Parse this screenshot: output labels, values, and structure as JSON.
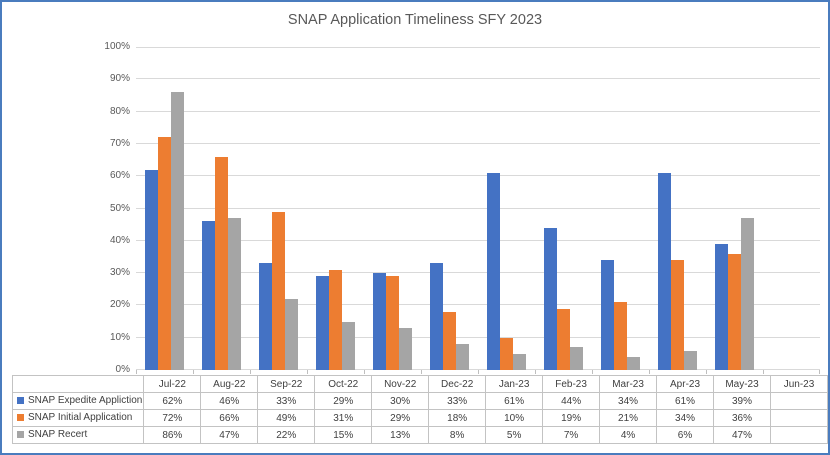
{
  "chart_data": {
    "type": "bar",
    "title": "SNAP Application Timeliness SFY 2023",
    "categories": [
      "Jul-22",
      "Aug-22",
      "Sep-22",
      "Oct-22",
      "Nov-22",
      "Dec-22",
      "Jan-23",
      "Feb-23",
      "Mar-23",
      "Apr-23",
      "May-23",
      "Jun-23"
    ],
    "series": [
      {
        "name": "SNAP Expedite Appliction",
        "color": "#4472C4",
        "values": [
          62,
          46,
          33,
          29,
          30,
          33,
          61,
          44,
          34,
          61,
          39,
          null
        ]
      },
      {
        "name": "SNAP Initial Application",
        "color": "#ED7D31",
        "values": [
          72,
          66,
          49,
          31,
          29,
          18,
          10,
          19,
          21,
          34,
          36,
          null
        ]
      },
      {
        "name": "SNAP Recert",
        "color": "#A5A5A5",
        "values": [
          86,
          47,
          22,
          15,
          13,
          8,
          5,
          7,
          4,
          6,
          47,
          null
        ]
      }
    ],
    "value_suffix": "%",
    "ylim": [
      0,
      100
    ],
    "ytick_step": 10,
    "ytick_labels": [
      "0%",
      "10%",
      "20%",
      "30%",
      "40%",
      "50%",
      "60%",
      "70%",
      "80%",
      "90%",
      "100%"
    ],
    "grid": true,
    "legend_position": "data-table-left",
    "data_table_shown": true
  },
  "colors": {
    "frame_border": "#4A7CBE",
    "grid_line": "#D9D9D9",
    "table_border": "#C3C3C3",
    "title_text": "#595959",
    "axis_text": "#595959",
    "table_text": "#404040",
    "background": "#FFFFFF"
  }
}
